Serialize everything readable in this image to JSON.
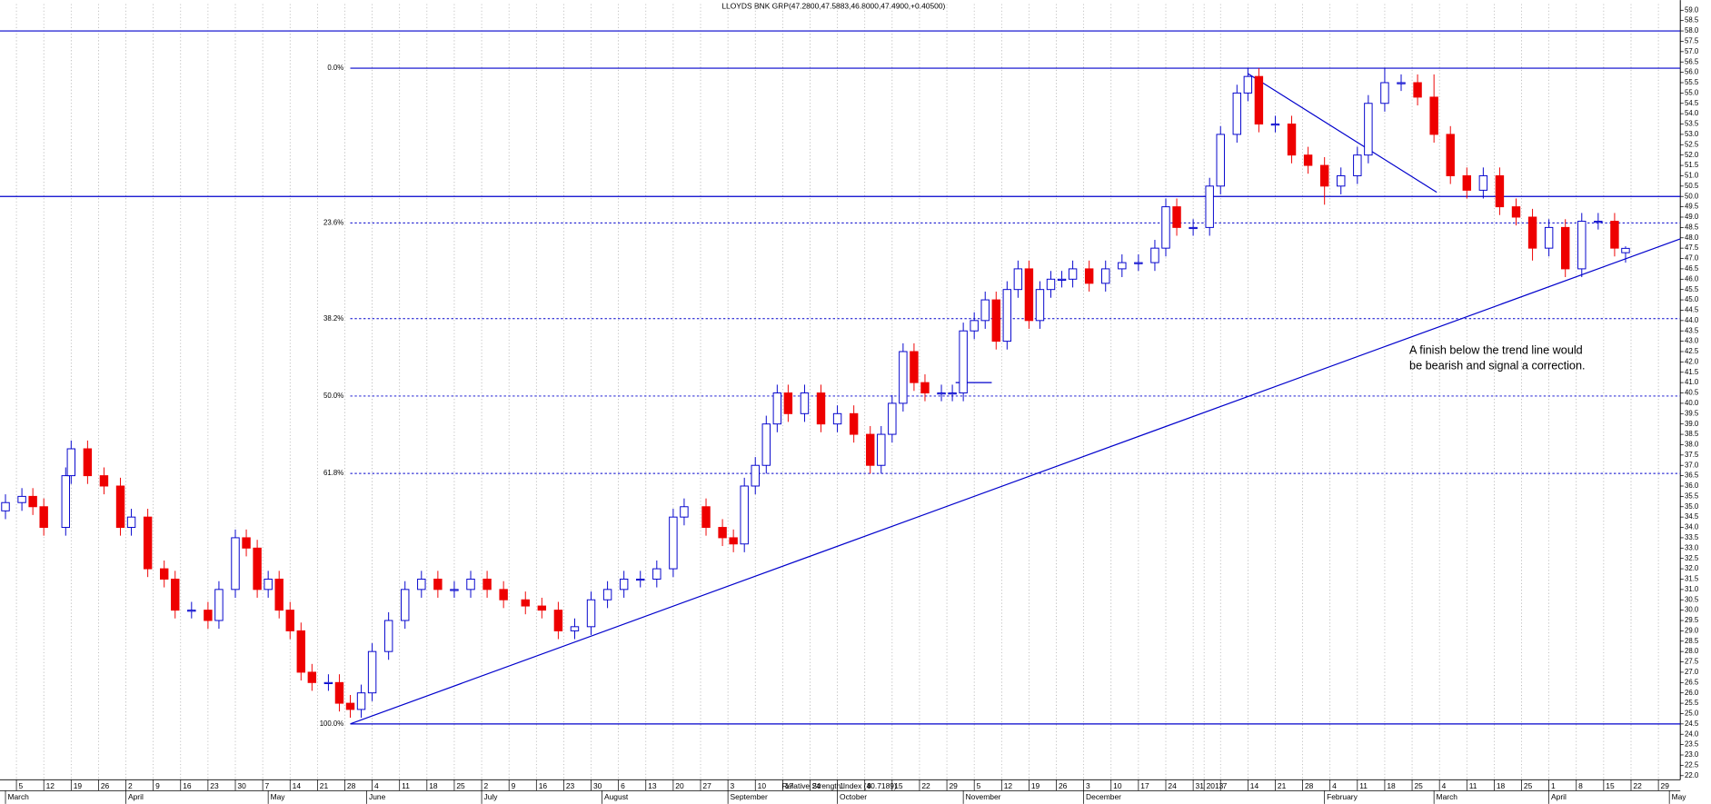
{
  "chart_data": {
    "type": "candlestick",
    "title": "LLOYDS BNK GRP(47.2800,47.5883,46.8000,47.4900,+0.40500)",
    "indicator_label": "Relative Strength Index (40.7189)",
    "annotation": [
      "A finish below the trend line would",
      "be bearish and signal a correction."
    ],
    "up_color": "#0000cc",
    "down_color": "#ee0000",
    "line_color": "#0000cc",
    "xlim": [
      -1,
      306
    ],
    "ylim": [
      21.8,
      59.3
    ],
    "candles": {
      "x": [
        0,
        3,
        5,
        7,
        11,
        12,
        15,
        18,
        21,
        23,
        26,
        29,
        31,
        34,
        37,
        39,
        42,
        44,
        46,
        48,
        50,
        52,
        54,
        56,
        59,
        61,
        63,
        65,
        67,
        70,
        73,
        76,
        79,
        82,
        85,
        88,
        91,
        95,
        98,
        101,
        104,
        107,
        110,
        113,
        116,
        119,
        122,
        124,
        128,
        131,
        133,
        135,
        137,
        139,
        141,
        143,
        146,
        149,
        152,
        155,
        158,
        160,
        162,
        164,
        166,
        168,
        171,
        173,
        175,
        177,
        179,
        181,
        183,
        185,
        187,
        189,
        191,
        193,
        195,
        198,
        201,
        204,
        207,
        210,
        212,
        214,
        217,
        220,
        222,
        225,
        227,
        229,
        232,
        235,
        238,
        241,
        244,
        247,
        249,
        252,
        255,
        258,
        261,
        264,
        267,
        270,
        273,
        276,
        279,
        282,
        285,
        288,
        291,
        294,
        296
      ],
      "open": [
        34.8,
        35.2,
        35.5,
        35.0,
        34.0,
        36.5,
        37.8,
        36.5,
        36.0,
        34.0,
        34.5,
        32.0,
        31.5,
        30.0,
        30.0,
        29.5,
        31.0,
        33.5,
        33.0,
        31.0,
        31.5,
        30.0,
        29.0,
        27.0,
        26.5,
        26.5,
        25.5,
        25.2,
        26.0,
        28.0,
        29.5,
        31.0,
        31.5,
        31.0,
        31.0,
        31.5,
        31.0,
        30.5,
        30.2,
        30.0,
        29.0,
        29.2,
        30.5,
        31.0,
        31.5,
        31.5,
        32.0,
        34.5,
        35.0,
        34.0,
        33.5,
        33.2,
        36.0,
        37.0,
        39.0,
        40.5,
        39.5,
        40.5,
        39.0,
        39.5,
        38.5,
        37.0,
        38.5,
        40.0,
        42.5,
        41.0,
        40.5,
        40.5,
        40.5,
        43.5,
        44.0,
        45.0,
        43.0,
        45.5,
        46.5,
        44.0,
        45.5,
        46.0,
        46.0,
        46.5,
        45.8,
        46.5,
        46.8,
        46.8,
        47.5,
        49.5,
        48.5,
        48.5,
        50.5,
        53.0,
        55.0,
        55.8,
        53.5,
        53.5,
        52.0,
        51.5,
        50.5,
        51.0,
        52.0,
        54.5,
        55.5,
        55.5,
        54.8,
        53.0,
        51.0,
        50.3,
        51.0,
        49.5,
        49.0,
        47.5,
        48.5,
        46.5,
        48.8,
        48.8,
        47.28
      ],
      "high": [
        35.6,
        35.9,
        35.9,
        35.4,
        36.9,
        38.2,
        38.2,
        36.9,
        36.4,
        34.9,
        34.9,
        32.4,
        31.9,
        30.4,
        30.4,
        31.4,
        33.9,
        33.9,
        33.4,
        31.9,
        31.9,
        30.4,
        29.4,
        27.4,
        26.9,
        26.9,
        25.9,
        26.4,
        28.4,
        29.9,
        31.4,
        31.9,
        31.9,
        31.4,
        31.9,
        31.9,
        31.4,
        30.9,
        30.6,
        30.4,
        29.6,
        30.9,
        31.4,
        31.9,
        31.9,
        32.4,
        34.9,
        35.4,
        35.4,
        34.4,
        33.9,
        36.4,
        37.4,
        39.4,
        40.9,
        40.9,
        40.9,
        40.9,
        39.9,
        39.9,
        38.9,
        38.9,
        40.4,
        42.9,
        42.9,
        41.4,
        40.9,
        40.9,
        43.9,
        44.4,
        45.4,
        45.4,
        45.9,
        46.9,
        46.9,
        45.9,
        46.4,
        46.4,
        46.9,
        46.9,
        46.9,
        47.2,
        47.2,
        47.9,
        49.9,
        49.9,
        48.9,
        50.9,
        53.4,
        55.4,
        56.2,
        56.2,
        53.9,
        53.9,
        52.4,
        51.9,
        51.4,
        52.4,
        54.9,
        56.2,
        55.9,
        55.9,
        55.9,
        53.4,
        51.4,
        51.4,
        51.4,
        49.9,
        49.4,
        48.9,
        48.9,
        49.2,
        49.2,
        49.2,
        47.5883
      ],
      "low": [
        34.4,
        34.8,
        34.6,
        33.6,
        33.6,
        36.1,
        36.1,
        35.6,
        33.6,
        33.6,
        31.6,
        31.1,
        29.6,
        29.6,
        29.1,
        29.1,
        30.6,
        32.6,
        30.6,
        30.6,
        29.6,
        28.6,
        26.6,
        26.1,
        26.1,
        25.1,
        24.8,
        24.8,
        25.6,
        27.6,
        29.1,
        30.6,
        30.6,
        30.6,
        30.6,
        30.6,
        30.1,
        29.8,
        29.6,
        28.6,
        28.6,
        28.8,
        30.1,
        30.6,
        31.1,
        31.1,
        31.6,
        34.1,
        33.6,
        33.1,
        32.8,
        32.8,
        35.6,
        36.6,
        38.6,
        39.1,
        39.1,
        38.6,
        38.6,
        38.1,
        36.6,
        36.6,
        38.1,
        39.6,
        40.6,
        40.1,
        40.1,
        40.1,
        40.1,
        43.1,
        43.6,
        42.6,
        42.6,
        45.1,
        43.6,
        43.6,
        45.1,
        45.6,
        45.6,
        45.4,
        45.4,
        46.1,
        46.4,
        46.4,
        47.1,
        48.1,
        48.1,
        48.1,
        50.1,
        52.6,
        54.6,
        53.1,
        53.1,
        51.6,
        51.1,
        49.6,
        50.1,
        50.6,
        51.6,
        54.1,
        55.1,
        54.4,
        52.6,
        50.6,
        49.9,
        49.9,
        49.1,
        48.6,
        46.9,
        47.1,
        46.1,
        46.1,
        48.4,
        47.1,
        46.8
      ],
      "close": [
        35.2,
        35.5,
        35.0,
        34.0,
        36.5,
        37.8,
        36.5,
        36.0,
        34.0,
        34.5,
        32.0,
        31.5,
        30.0,
        30.0,
        29.5,
        31.0,
        33.5,
        33.0,
        31.0,
        31.5,
        30.0,
        29.0,
        27.0,
        26.5,
        26.5,
        25.5,
        25.2,
        26.0,
        28.0,
        29.5,
        31.0,
        31.5,
        31.0,
        31.0,
        31.5,
        31.0,
        30.5,
        30.2,
        30.0,
        29.0,
        29.2,
        30.5,
        31.0,
        31.5,
        31.5,
        32.0,
        34.5,
        35.0,
        34.0,
        33.5,
        33.2,
        36.0,
        37.0,
        39.0,
        40.5,
        39.5,
        40.5,
        39.0,
        39.5,
        38.5,
        37.0,
        38.5,
        40.0,
        42.5,
        41.0,
        40.5,
        40.5,
        40.5,
        43.5,
        44.0,
        45.0,
        43.0,
        45.5,
        46.5,
        44.0,
        45.5,
        46.0,
        46.0,
        46.5,
        45.8,
        46.5,
        46.8,
        46.8,
        47.5,
        49.5,
        48.5,
        48.5,
        50.5,
        53.0,
        55.0,
        55.8,
        53.5,
        53.5,
        52.0,
        51.5,
        50.5,
        51.0,
        52.0,
        54.5,
        55.5,
        55.5,
        54.8,
        53.0,
        51.0,
        50.3,
        51.0,
        49.5,
        49.0,
        47.5,
        48.5,
        46.5,
        48.8,
        48.8,
        47.5,
        47.49
      ]
    },
    "horizontal_lines": [
      58.0,
      50.0
    ],
    "fibonacci": {
      "x_start": 63,
      "levels": [
        {
          "label": "0.0%",
          "value": 56.2,
          "style": "solid"
        },
        {
          "label": "23.6%",
          "value": 48.72,
          "style": "dotted"
        },
        {
          "label": "38.2%",
          "value": 44.09,
          "style": "dotted"
        },
        {
          "label": "50.0%",
          "value": 40.35,
          "style": "dotted"
        },
        {
          "label": "61.8%",
          "value": 36.61,
          "style": "dotted"
        },
        {
          "label": "100.0%",
          "value": 24.5,
          "style": "solid"
        }
      ]
    },
    "trend_lines": [
      {
        "x": [
          63,
          306
        ],
        "y": [
          24.5,
          47.95
        ]
      },
      {
        "x": [
          227,
          261.5
        ],
        "y": [
          55.94,
          50.2
        ]
      },
      {
        "x": [
          173.6,
          180.2
        ],
        "y": [
          41.0,
          41.0
        ]
      }
    ],
    "xticks": [
      {
        "value": 2,
        "label": "5"
      },
      {
        "value": 7,
        "label": "12"
      },
      {
        "value": 12,
        "label": "19"
      },
      {
        "value": 17,
        "label": "26"
      },
      {
        "value": 22,
        "label": "2"
      },
      {
        "value": 27,
        "label": "9"
      },
      {
        "value": 32,
        "label": "16"
      },
      {
        "value": 37,
        "label": "23"
      },
      {
        "value": 42,
        "label": "30"
      },
      {
        "value": 47,
        "label": "7"
      },
      {
        "value": 52,
        "label": "14"
      },
      {
        "value": 57,
        "label": "21"
      },
      {
        "value": 62,
        "label": "28"
      },
      {
        "value": 67,
        "label": "4"
      },
      {
        "value": 72,
        "label": "11"
      },
      {
        "value": 77,
        "label": "18"
      },
      {
        "value": 82,
        "label": "25"
      },
      {
        "value": 87,
        "label": "2"
      },
      {
        "value": 92,
        "label": "9"
      },
      {
        "value": 97,
        "label": "16"
      },
      {
        "value": 102,
        "label": "23"
      },
      {
        "value": 107,
        "label": "30"
      },
      {
        "value": 112,
        "label": "6"
      },
      {
        "value": 117,
        "label": "13"
      },
      {
        "value": 122,
        "label": "20"
      },
      {
        "value": 127,
        "label": "27"
      },
      {
        "value": 132,
        "label": "3"
      },
      {
        "value": 137,
        "label": "10"
      },
      {
        "value": 142,
        "label": "17"
      },
      {
        "value": 147,
        "label": "24"
      },
      {
        "value": 152,
        "label": "1"
      },
      {
        "value": 157,
        "label": "8"
      },
      {
        "value": 162,
        "label": "15"
      },
      {
        "value": 167,
        "label": "22"
      },
      {
        "value": 172,
        "label": "29"
      },
      {
        "value": 177,
        "label": "5"
      },
      {
        "value": 182,
        "label": "12"
      },
      {
        "value": 187,
        "label": "19"
      },
      {
        "value": 192,
        "label": "26"
      },
      {
        "value": 197,
        "label": "3"
      },
      {
        "value": 202,
        "label": "10"
      },
      {
        "value": 207,
        "label": "17"
      },
      {
        "value": 212,
        "label": "24"
      },
      {
        "value": 217,
        "label": "31"
      },
      {
        "value": 219,
        "label": "2013"
      },
      {
        "value": 222,
        "label": "7"
      },
      {
        "value": 227,
        "label": "14"
      },
      {
        "value": 232,
        "label": "21"
      },
      {
        "value": 237,
        "label": "28"
      },
      {
        "value": 242,
        "label": "4"
      },
      {
        "value": 247,
        "label": "11"
      },
      {
        "value": 252,
        "label": "18"
      },
      {
        "value": 257,
        "label": "25"
      },
      {
        "value": 262,
        "label": "4"
      },
      {
        "value": 267,
        "label": "11"
      },
      {
        "value": 272,
        "label": "18"
      },
      {
        "value": 277,
        "label": "25"
      },
      {
        "value": 282,
        "label": "1"
      },
      {
        "value": 287,
        "label": "8"
      },
      {
        "value": 292,
        "label": "15"
      },
      {
        "value": 297,
        "label": "22"
      },
      {
        "value": 302,
        "label": "29"
      }
    ],
    "month_ticks": [
      {
        "value": 0,
        "label": "March"
      },
      {
        "value": 22,
        "label": "April"
      },
      {
        "value": 48,
        "label": "May"
      },
      {
        "value": 66,
        "label": "June"
      },
      {
        "value": 87,
        "label": "July"
      },
      {
        "value": 109,
        "label": "August"
      },
      {
        "value": 132,
        "label": "September"
      },
      {
        "value": 152,
        "label": "October"
      },
      {
        "value": 175,
        "label": "November"
      },
      {
        "value": 197,
        "label": "December"
      },
      {
        "value": 241,
        "label": "February"
      },
      {
        "value": 261,
        "label": "March"
      },
      {
        "value": 282,
        "label": "April"
      },
      {
        "value": 304,
        "label": "May"
      }
    ],
    "yticks": [
      {
        "value": 22,
        "label": "22.0"
      },
      {
        "value": 22.5,
        "label": "22.5"
      },
      {
        "value": 23,
        "label": "23.0"
      },
      {
        "value": 23.5,
        "label": "23.5"
      },
      {
        "value": 24,
        "label": "24.0"
      },
      {
        "value": 24.5,
        "label": "24.5"
      },
      {
        "value": 25,
        "label": "25.0"
      },
      {
        "value": 25.5,
        "label": "25.5"
      },
      {
        "value": 26,
        "label": "26.0"
      },
      {
        "value": 26.5,
        "label": "26.5"
      },
      {
        "value": 27,
        "label": "27.0"
      },
      {
        "value": 27.5,
        "label": "27.5"
      },
      {
        "value": 28,
        "label": "28.0"
      },
      {
        "value": 28.5,
        "label": "28.5"
      },
      {
        "value": 29,
        "label": "29.0"
      },
      {
        "value": 29.5,
        "label": "29.5"
      },
      {
        "value": 30,
        "label": "30.0"
      },
      {
        "value": 30.5,
        "label": "30.5"
      },
      {
        "value": 31,
        "label": "31.0"
      },
      {
        "value": 31.5,
        "label": "31.5"
      },
      {
        "value": 32,
        "label": "32.0"
      },
      {
        "value": 32.5,
        "label": "32.5"
      },
      {
        "value": 33,
        "label": "33.0"
      },
      {
        "value": 33.5,
        "label": "33.5"
      },
      {
        "value": 34,
        "label": "34.0"
      },
      {
        "value": 34.5,
        "label": "34.5"
      },
      {
        "value": 35,
        "label": "35.0"
      },
      {
        "value": 35.5,
        "label": "35.5"
      },
      {
        "value": 36,
        "label": "36.0"
      },
      {
        "value": 36.5,
        "label": "36.5"
      },
      {
        "value": 37,
        "label": "37.0"
      },
      {
        "value": 37.5,
        "label": "37.5"
      },
      {
        "value": 38,
        "label": "38.0"
      },
      {
        "value": 38.5,
        "label": "38.5"
      },
      {
        "value": 39,
        "label": "39.0"
      },
      {
        "value": 39.5,
        "label": "39.5"
      },
      {
        "value": 40,
        "label": "40.0"
      },
      {
        "value": 40.5,
        "label": "40.5"
      },
      {
        "value": 41,
        "label": "41.0"
      },
      {
        "value": 41.5,
        "label": "41.5"
      },
      {
        "value": 42,
        "label": "42.0"
      },
      {
        "value": 42.5,
        "label": "42.5"
      },
      {
        "value": 43,
        "label": "43.0"
      },
      {
        "value": 43.5,
        "label": "43.5"
      },
      {
        "value": 44,
        "label": "44.0"
      },
      {
        "value": 44.5,
        "label": "44.5"
      },
      {
        "value": 45,
        "label": "45.0"
      },
      {
        "value": 45.5,
        "label": "45.5"
      },
      {
        "value": 46,
        "label": "46.0"
      },
      {
        "value": 46.5,
        "label": "46.5"
      },
      {
        "value": 47,
        "label": "47.0"
      },
      {
        "value": 47.5,
        "label": "47.5"
      },
      {
        "value": 48,
        "label": "48.0"
      },
      {
        "value": 48.5,
        "label": "48.5"
      },
      {
        "value": 49,
        "label": "49.0"
      },
      {
        "value": 49.5,
        "label": "49.5"
      },
      {
        "value": 50,
        "label": "50.0"
      },
      {
        "value": 50.5,
        "label": "50.5"
      },
      {
        "value": 51,
        "label": "51.0"
      },
      {
        "value": 51.5,
        "label": "51.5"
      },
      {
        "value": 52,
        "label": "52.0"
      },
      {
        "value": 52.5,
        "label": "52.5"
      },
      {
        "value": 53,
        "label": "53.0"
      },
      {
        "value": 53.5,
        "label": "53.5"
      },
      {
        "value": 54,
        "label": "54.0"
      },
      {
        "value": 54.5,
        "label": "54.5"
      },
      {
        "value": 55,
        "label": "55.0"
      },
      {
        "value": 55.5,
        "label": "55.5"
      },
      {
        "value": 56,
        "label": "56.0"
      },
      {
        "value": 56.5,
        "label": "56.5"
      },
      {
        "value": 57,
        "label": "57.0"
      },
      {
        "value": 57.5,
        "label": "57.5"
      },
      {
        "value": 58,
        "label": "58.0"
      },
      {
        "value": 58.5,
        "label": "58.5"
      },
      {
        "value": 59,
        "label": "59.0"
      }
    ],
    "grid": true
  }
}
